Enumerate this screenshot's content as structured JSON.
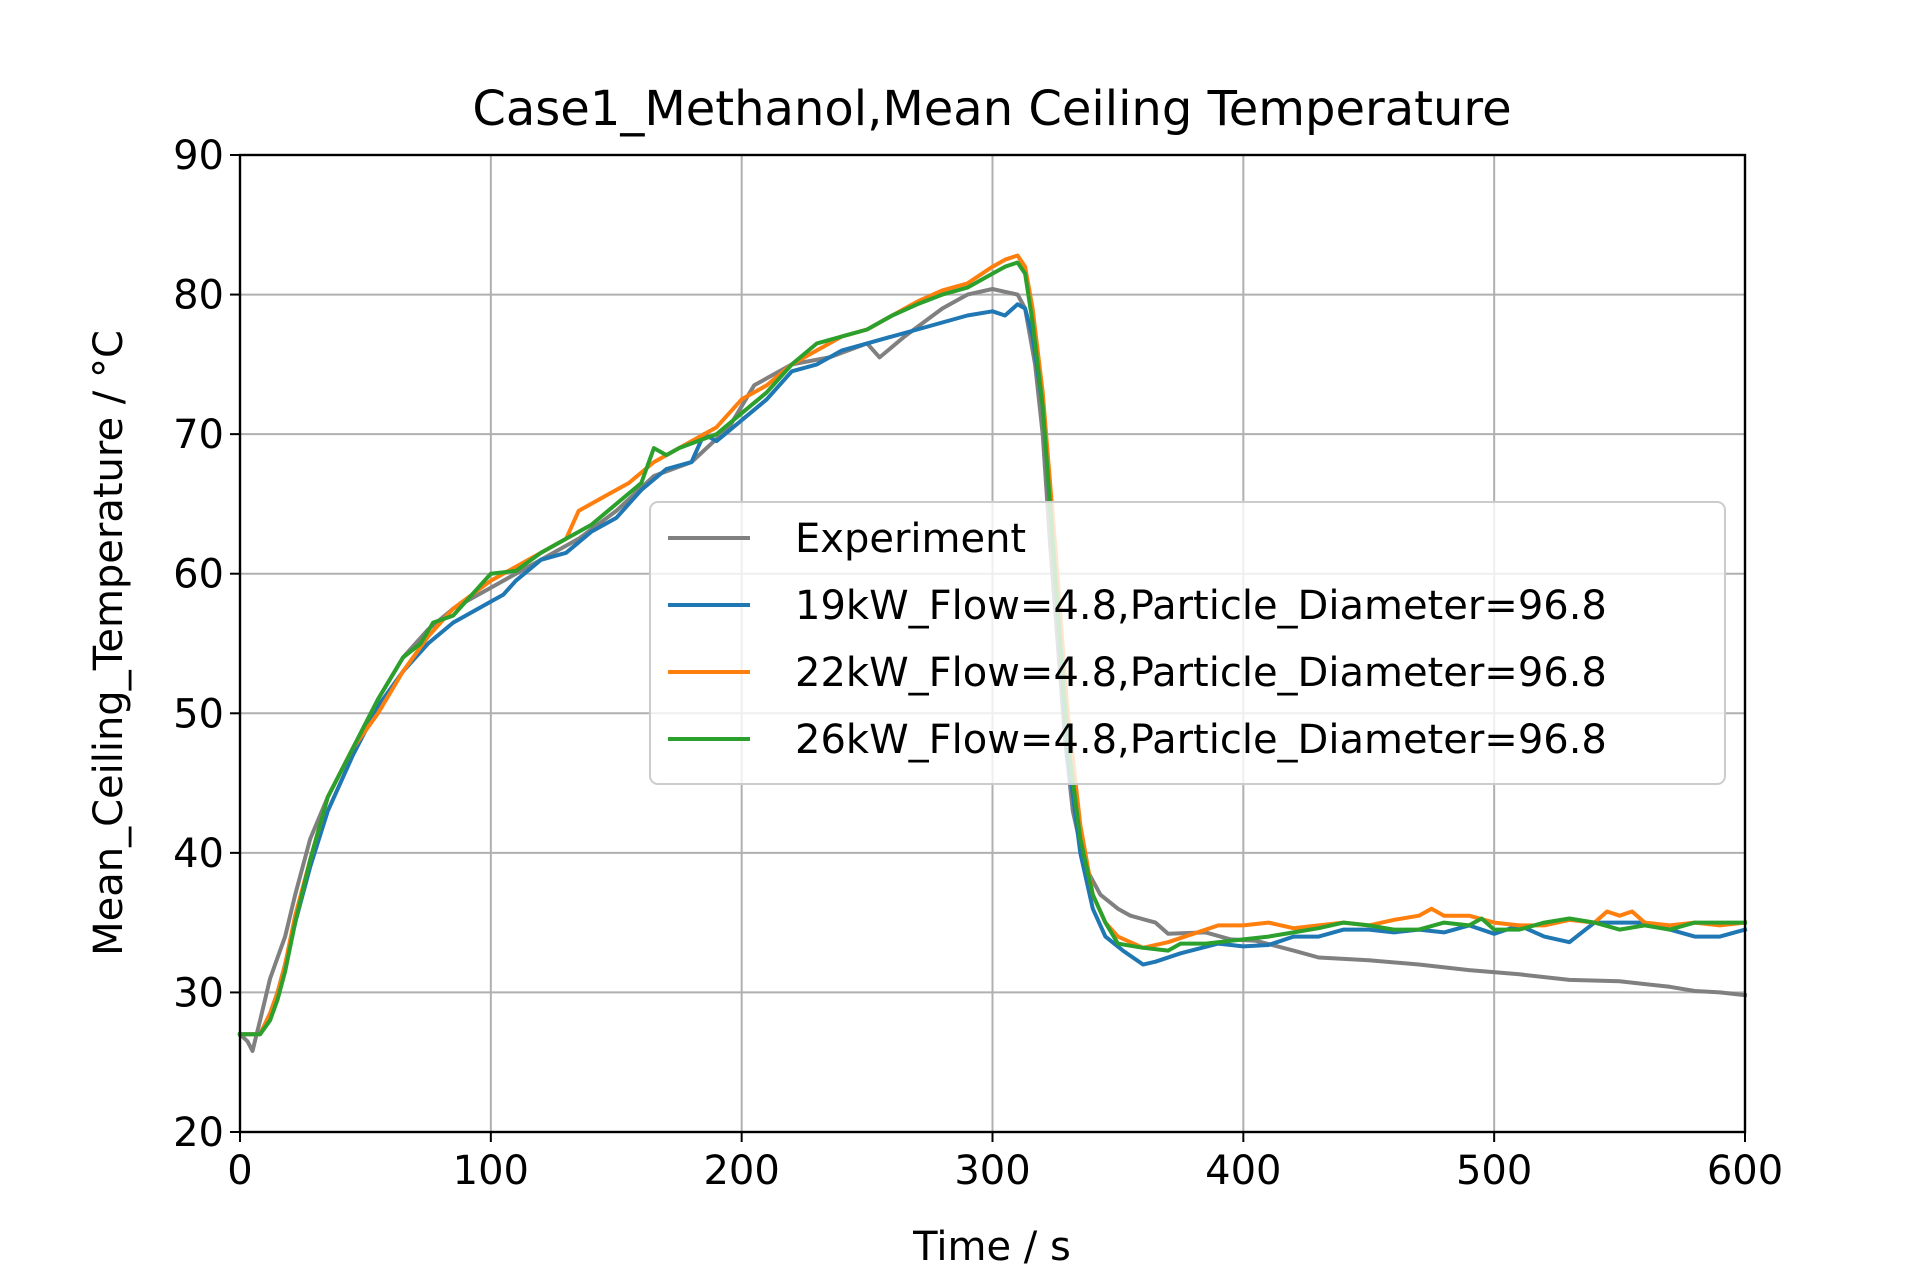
{
  "chart_data": {
    "type": "line",
    "title": "Case1_Methanol,Mean Ceiling Temperature",
    "xlabel": "Time / s",
    "ylabel": "Mean_Ceiling_Temperature / °C",
    "xlim": [
      0,
      600
    ],
    "ylim": [
      20,
      90
    ],
    "xticks": [
      0,
      100,
      200,
      300,
      400,
      500,
      600
    ],
    "yticks": [
      20,
      30,
      40,
      50,
      60,
      70,
      80,
      90
    ],
    "grid": true,
    "legend_position": "center-right",
    "series": [
      {
        "name": "Experiment",
        "color": "#808080",
        "points": [
          [
            0,
            27
          ],
          [
            3,
            26.5
          ],
          [
            5,
            25.8
          ],
          [
            8,
            28
          ],
          [
            12,
            31
          ],
          [
            15,
            32.5
          ],
          [
            18,
            34
          ],
          [
            22,
            37
          ],
          [
            28,
            41
          ],
          [
            35,
            44
          ],
          [
            45,
            47.5
          ],
          [
            55,
            51
          ],
          [
            65,
            54
          ],
          [
            75,
            56
          ],
          [
            85,
            57.5
          ],
          [
            100,
            59
          ],
          [
            110,
            60
          ],
          [
            120,
            61
          ],
          [
            135,
            62.5
          ],
          [
            150,
            64.5
          ],
          [
            165,
            67
          ],
          [
            180,
            68
          ],
          [
            195,
            70.5
          ],
          [
            205,
            73.5
          ],
          [
            220,
            75
          ],
          [
            235,
            75.5
          ],
          [
            250,
            76.5
          ],
          [
            255,
            75.5
          ],
          [
            265,
            77
          ],
          [
            280,
            79
          ],
          [
            290,
            80
          ],
          [
            300,
            80.4
          ],
          [
            305,
            80.2
          ],
          [
            310,
            80
          ],
          [
            313,
            79
          ],
          [
            317,
            75
          ],
          [
            320,
            70
          ],
          [
            323,
            62
          ],
          [
            326,
            55
          ],
          [
            329,
            48
          ],
          [
            332,
            43
          ],
          [
            337,
            39
          ],
          [
            343,
            37
          ],
          [
            350,
            36
          ],
          [
            355,
            35.5
          ],
          [
            365,
            35
          ],
          [
            370,
            34.2
          ],
          [
            385,
            34.3
          ],
          [
            395,
            33.8
          ],
          [
            405,
            33.7
          ],
          [
            420,
            33
          ],
          [
            430,
            32.5
          ],
          [
            450,
            32.3
          ],
          [
            470,
            32
          ],
          [
            490,
            31.6
          ],
          [
            510,
            31.3
          ],
          [
            530,
            30.9
          ],
          [
            550,
            30.8
          ],
          [
            570,
            30.4
          ],
          [
            580,
            30.1
          ],
          [
            590,
            30
          ],
          [
            600,
            29.8
          ]
        ]
      },
      {
        "name": "19kW_Flow=4.8,Particle_Diameter=96.8",
        "color": "#1f77b4",
        "points": [
          [
            0,
            27
          ],
          [
            5,
            27
          ],
          [
            8,
            27
          ],
          [
            12,
            28.5
          ],
          [
            15,
            30
          ],
          [
            18,
            32
          ],
          [
            22,
            35
          ],
          [
            28,
            39
          ],
          [
            35,
            43
          ],
          [
            45,
            47
          ],
          [
            55,
            50.5
          ],
          [
            65,
            53
          ],
          [
            75,
            55
          ],
          [
            85,
            56.5
          ],
          [
            100,
            58
          ],
          [
            105,
            58.5
          ],
          [
            110,
            59.5
          ],
          [
            120,
            61
          ],
          [
            130,
            61.5
          ],
          [
            140,
            63
          ],
          [
            150,
            64
          ],
          [
            160,
            66
          ],
          [
            170,
            67.5
          ],
          [
            180,
            68
          ],
          [
            185,
            70
          ],
          [
            190,
            69.5
          ],
          [
            200,
            71
          ],
          [
            210,
            72.5
          ],
          [
            220,
            74.5
          ],
          [
            230,
            75
          ],
          [
            240,
            76
          ],
          [
            250,
            76.5
          ],
          [
            260,
            77
          ],
          [
            270,
            77.5
          ],
          [
            280,
            78
          ],
          [
            290,
            78.5
          ],
          [
            300,
            78.8
          ],
          [
            305,
            78.5
          ],
          [
            310,
            79.3
          ],
          [
            313,
            79
          ],
          [
            316,
            77
          ],
          [
            320,
            72
          ],
          [
            325,
            60
          ],
          [
            330,
            47
          ],
          [
            335,
            40
          ],
          [
            340,
            36
          ],
          [
            345,
            34
          ],
          [
            352,
            33
          ],
          [
            360,
            32
          ],
          [
            365,
            32.2
          ],
          [
            375,
            32.8
          ],
          [
            390,
            33.5
          ],
          [
            400,
            33.3
          ],
          [
            410,
            33.4
          ],
          [
            420,
            34
          ],
          [
            430,
            34
          ],
          [
            440,
            34.5
          ],
          [
            450,
            34.5
          ],
          [
            460,
            34.3
          ],
          [
            470,
            34.5
          ],
          [
            480,
            34.3
          ],
          [
            490,
            34.8
          ],
          [
            500,
            34.2
          ],
          [
            510,
            34.8
          ],
          [
            520,
            34
          ],
          [
            530,
            33.6
          ],
          [
            540,
            35
          ],
          [
            550,
            35
          ],
          [
            560,
            35
          ],
          [
            570,
            34.5
          ],
          [
            580,
            34
          ],
          [
            590,
            34
          ],
          [
            600,
            34.5
          ]
        ]
      },
      {
        "name": "22kW_Flow=4.8,Particle_Diameter=96.8",
        "color": "#ff7f0e",
        "points": [
          [
            0,
            27
          ],
          [
            5,
            27
          ],
          [
            8,
            27
          ],
          [
            12,
            28.5
          ],
          [
            15,
            30
          ],
          [
            18,
            32
          ],
          [
            22,
            35.5
          ],
          [
            28,
            39.5
          ],
          [
            35,
            44
          ],
          [
            45,
            47.5
          ],
          [
            55,
            50
          ],
          [
            65,
            53
          ],
          [
            75,
            55.5
          ],
          [
            85,
            57.5
          ],
          [
            100,
            59.5
          ],
          [
            110,
            60.5
          ],
          [
            120,
            61.5
          ],
          [
            130,
            62.5
          ],
          [
            135,
            64.5
          ],
          [
            145,
            65.5
          ],
          [
            155,
            66.5
          ],
          [
            165,
            68
          ],
          [
            175,
            69
          ],
          [
            190,
            70.5
          ],
          [
            200,
            72.5
          ],
          [
            210,
            73.5
          ],
          [
            220,
            75
          ],
          [
            230,
            76
          ],
          [
            240,
            77
          ],
          [
            250,
            77.5
          ],
          [
            260,
            78.5
          ],
          [
            270,
            79.5
          ],
          [
            280,
            80.3
          ],
          [
            290,
            80.8
          ],
          [
            300,
            82
          ],
          [
            305,
            82.5
          ],
          [
            310,
            82.8
          ],
          [
            313,
            82
          ],
          [
            316,
            79
          ],
          [
            320,
            73
          ],
          [
            325,
            62
          ],
          [
            330,
            50
          ],
          [
            335,
            42
          ],
          [
            340,
            37
          ],
          [
            345,
            35
          ],
          [
            350,
            34
          ],
          [
            360,
            33.2
          ],
          [
            370,
            33.6
          ],
          [
            380,
            34.2
          ],
          [
            390,
            34.8
          ],
          [
            400,
            34.8
          ],
          [
            410,
            35
          ],
          [
            420,
            34.6
          ],
          [
            430,
            34.8
          ],
          [
            440,
            35
          ],
          [
            450,
            34.8
          ],
          [
            460,
            35.2
          ],
          [
            470,
            35.5
          ],
          [
            475,
            36
          ],
          [
            480,
            35.5
          ],
          [
            490,
            35.5
          ],
          [
            500,
            35
          ],
          [
            510,
            34.8
          ],
          [
            520,
            34.8
          ],
          [
            530,
            35.2
          ],
          [
            540,
            35
          ],
          [
            545,
            35.8
          ],
          [
            550,
            35.5
          ],
          [
            555,
            35.8
          ],
          [
            560,
            35
          ],
          [
            570,
            34.8
          ],
          [
            580,
            35
          ],
          [
            590,
            34.8
          ],
          [
            600,
            35
          ]
        ]
      },
      {
        "name": "26kW_Flow=4.8,Particle_Diameter=96.8",
        "color": "#2ca02c",
        "points": [
          [
            0,
            27
          ],
          [
            5,
            27
          ],
          [
            8,
            27
          ],
          [
            12,
            28
          ],
          [
            15,
            29.5
          ],
          [
            18,
            31.5
          ],
          [
            22,
            35
          ],
          [
            28,
            39.5
          ],
          [
            35,
            44
          ],
          [
            45,
            47.5
          ],
          [
            55,
            51
          ],
          [
            65,
            54
          ],
          [
            72,
            55
          ],
          [
            77,
            56.5
          ],
          [
            85,
            57
          ],
          [
            100,
            60
          ],
          [
            110,
            60.2
          ],
          [
            120,
            61.5
          ],
          [
            130,
            62.5
          ],
          [
            140,
            63.5
          ],
          [
            150,
            65
          ],
          [
            160,
            66.5
          ],
          [
            165,
            69
          ],
          [
            170,
            68.5
          ],
          [
            175,
            69
          ],
          [
            190,
            70
          ],
          [
            200,
            71.5
          ],
          [
            210,
            73
          ],
          [
            220,
            75
          ],
          [
            230,
            76.5
          ],
          [
            240,
            77
          ],
          [
            250,
            77.5
          ],
          [
            260,
            78.5
          ],
          [
            270,
            79.3
          ],
          [
            280,
            80
          ],
          [
            290,
            80.5
          ],
          [
            300,
            81.5
          ],
          [
            305,
            82
          ],
          [
            310,
            82.3
          ],
          [
            313,
            81.5
          ],
          [
            316,
            78
          ],
          [
            320,
            72
          ],
          [
            325,
            60
          ],
          [
            330,
            48
          ],
          [
            335,
            41
          ],
          [
            340,
            37
          ],
          [
            345,
            35
          ],
          [
            350,
            33.5
          ],
          [
            360,
            33.2
          ],
          [
            370,
            33
          ],
          [
            375,
            33.5
          ],
          [
            385,
            33.5
          ],
          [
            400,
            33.8
          ],
          [
            410,
            34
          ],
          [
            420,
            34.3
          ],
          [
            430,
            34.6
          ],
          [
            440,
            35
          ],
          [
            450,
            34.8
          ],
          [
            460,
            34.5
          ],
          [
            470,
            34.5
          ],
          [
            480,
            35
          ],
          [
            490,
            34.8
          ],
          [
            495,
            35.3
          ],
          [
            500,
            34.5
          ],
          [
            510,
            34.5
          ],
          [
            520,
            35
          ],
          [
            530,
            35.3
          ],
          [
            540,
            35
          ],
          [
            550,
            34.5
          ],
          [
            560,
            34.8
          ],
          [
            570,
            34.5
          ],
          [
            580,
            35
          ],
          [
            590,
            35
          ],
          [
            600,
            35
          ]
        ]
      }
    ]
  }
}
